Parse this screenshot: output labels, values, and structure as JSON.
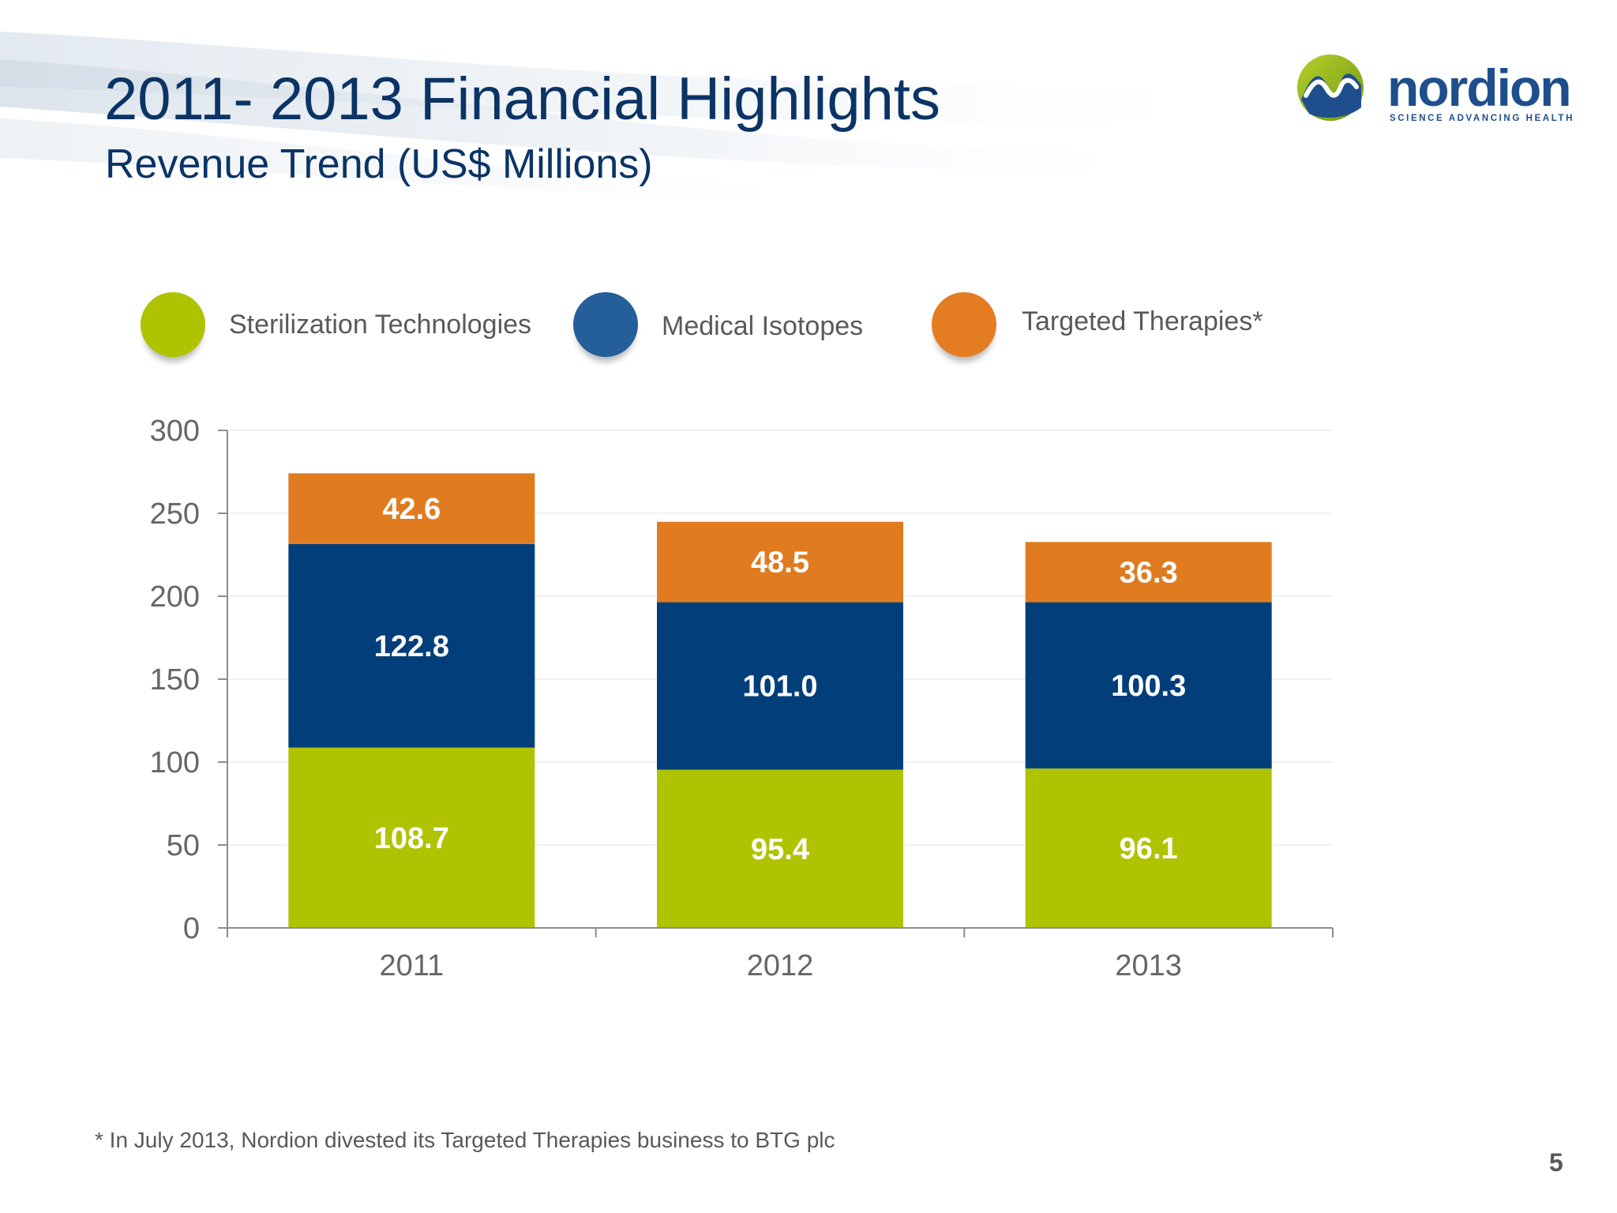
{
  "slide": {
    "title": "2011- 2013 Financial Highlights",
    "subtitle": "Revenue Trend (US$ Millions)",
    "footnote": "*  In July 2013, Nordion divested its Targeted Therapies business to BTG plc",
    "page_number": "5"
  },
  "logo": {
    "name": "nordion",
    "tagline": "SCIENCE ADVANCING HEALTH",
    "icon": "nordion-logo-mark-icon"
  },
  "colors": {
    "title": "#0b3466",
    "sterilization": "#afc300",
    "medical_isotopes": "#023f7a",
    "targeted_therapies": "#e07b1f",
    "legend_sterilization": "#afc300",
    "legend_medical_isotopes": "#245f99",
    "legend_targeted_therapies": "#e47d22",
    "axis": "#8c8c8c",
    "tick_label": "#666666"
  },
  "legend": [
    {
      "label": "Sterilization Technologies",
      "icon": "green-circle-icon"
    },
    {
      "label": "Medical Isotopes",
      "icon": "blue-circle-icon"
    },
    {
      "label": "Targeted Therapies*",
      "icon": "orange-circle-icon"
    }
  ],
  "chart_data": {
    "type": "bar",
    "stacked": true,
    "categories": [
      "2011",
      "2012",
      "2013"
    ],
    "series": [
      {
        "name": "Sterilization Technologies",
        "values": [
          108.7,
          95.4,
          96.1
        ],
        "labels": [
          "108.7",
          "95.4",
          "96.1"
        ]
      },
      {
        "name": "Medical Isotopes",
        "values": [
          122.8,
          101.0,
          100.3
        ],
        "labels": [
          "122.8",
          "101.0",
          "100.3"
        ]
      },
      {
        "name": "Targeted Therapies*",
        "values": [
          42.6,
          48.5,
          36.3
        ],
        "labels": [
          "42.6",
          "48.5",
          "36.3"
        ]
      }
    ],
    "title": "",
    "xlabel": "",
    "ylabel": "",
    "ylim": [
      0,
      300
    ],
    "yticks": [
      "0",
      "50",
      "100",
      "150",
      "200",
      "250",
      "300"
    ],
    "grid": true,
    "legend_position": "top"
  }
}
